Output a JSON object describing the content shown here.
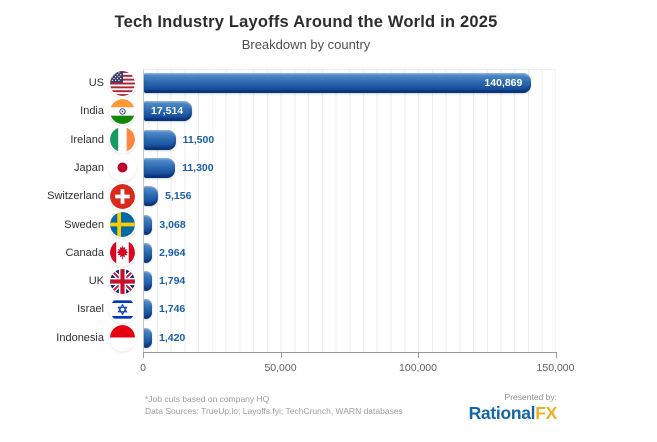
{
  "title": "Tech Industry Layoffs Around the World in 2025",
  "subtitle": "Breakdown by country",
  "chart_data": {
    "type": "bar",
    "orientation": "horizontal",
    "title": "Tech Industry Layoffs Around the World in 2025",
    "subtitle": "Breakdown by country",
    "categories": [
      "US",
      "India",
      "Ireland",
      "Japan",
      "Switzerland",
      "Sweden",
      "Canada",
      "UK",
      "Israel",
      "Indonesia"
    ],
    "values": [
      140869,
      17514,
      11500,
      11300,
      5156,
      3068,
      2964,
      1794,
      1746,
      1420
    ],
    "value_labels": [
      "140,869",
      "17,514",
      "11,500",
      "11,300",
      "5,156",
      "3,068",
      "2,964",
      "1,794",
      "1,746",
      "1,420"
    ],
    "flags": [
      "flag-us",
      "flag-india",
      "flag-ireland",
      "flag-japan",
      "flag-switzerland",
      "flag-sweden",
      "flag-canada",
      "flag-uk",
      "flag-israel",
      "flag-indonesia"
    ],
    "xlim": [
      0,
      150000
    ],
    "x_ticks": [
      {
        "value": 0,
        "label": "0"
      },
      {
        "value": 50000,
        "label": "50,000"
      },
      {
        "value": 100000,
        "label": "100,000"
      },
      {
        "value": 150000,
        "label": "150,000"
      }
    ],
    "minor_grid_step": 5000,
    "grid": true,
    "legend": false,
    "bar_gradient": [
      "#5b92cd",
      "#2d6bb2",
      "#0c3f92"
    ],
    "value_label_color": "#1a5fa8",
    "inside_label_threshold": 15000
  },
  "footer": {
    "note": "*Job cuts based on company HQ",
    "sources": "Data Sources: TrueUp.io; Layoffs.fyi; TechCrunch, WARN databases",
    "presented_by": "Presented by:",
    "brand": {
      "part1": "Rational",
      "part2": "FX",
      "color1": "#1565a9",
      "color2": "#eeb021"
    }
  }
}
